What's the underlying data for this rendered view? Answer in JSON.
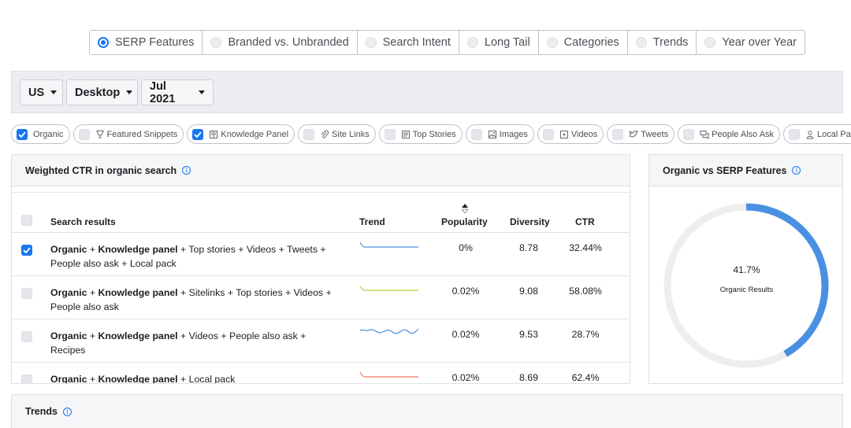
{
  "tabs": [
    {
      "label": "SERP Features",
      "selected": true
    },
    {
      "label": "Branded vs. Unbranded",
      "selected": false
    },
    {
      "label": "Search Intent",
      "selected": false
    },
    {
      "label": "Long Tail",
      "selected": false
    },
    {
      "label": "Categories",
      "selected": false
    },
    {
      "label": "Trends",
      "selected": false
    },
    {
      "label": "Year over Year",
      "selected": false
    }
  ],
  "filters": {
    "country": "US",
    "device": "Desktop",
    "month": "Jul 2021"
  },
  "chips": [
    {
      "label": "Organic",
      "checked": true,
      "icon": "none"
    },
    {
      "label": "Featured Snippets",
      "checked": false,
      "icon": "trophy-icon"
    },
    {
      "label": "Knowledge Panel",
      "checked": true,
      "icon": "book-icon"
    },
    {
      "label": "Site Links",
      "checked": false,
      "icon": "paperclip-icon"
    },
    {
      "label": "Top Stories",
      "checked": false,
      "icon": "newspaper-icon"
    },
    {
      "label": "Images",
      "checked": false,
      "icon": "image-icon"
    },
    {
      "label": "Videos",
      "checked": false,
      "icon": "video-icon"
    },
    {
      "label": "Tweets",
      "checked": false,
      "icon": "twitter-icon"
    },
    {
      "label": "People Also Ask",
      "checked": false,
      "icon": "chat-icon"
    },
    {
      "label": "Local Pack",
      "checked": false,
      "icon": "person-pin-icon"
    }
  ],
  "ctr_panel": {
    "title": "Weighted CTR in organic search",
    "columns": {
      "results": "Search results",
      "trend": "Trend",
      "popularity": "Popularity",
      "diversity": "Diversity",
      "ctr": "CTR"
    },
    "rows": [
      {
        "checked": true,
        "bold1": "Organic",
        "sep": " + ",
        "bold2": "Knowledge panel",
        "rest": " + Top stories + Videos + Tweets + People also ask + Local pack",
        "popularity": "0%",
        "diversity": "8.78",
        "ctr": "32.44%",
        "trend_color": "#4a90d9"
      },
      {
        "checked": false,
        "bold1": "Organic",
        "sep": " + ",
        "bold2": "Knowledge panel",
        "rest": " + Sitelinks + Top stories + Videos + People also ask",
        "popularity": "0.02%",
        "diversity": "9.08",
        "ctr": "58.08%",
        "trend_color": "#b5cc3a"
      },
      {
        "checked": false,
        "bold1": "Organic",
        "sep": " + ",
        "bold2": "Knowledge panel",
        "rest": " + Videos + People also ask + Recipes",
        "popularity": "0.02%",
        "diversity": "9.53",
        "ctr": "28.7%",
        "trend_color": "#4a90d9"
      },
      {
        "checked": false,
        "bold1": "Organic",
        "sep": " + ",
        "bold2": "Knowledge panel",
        "rest": " + Local pack",
        "popularity": "0.02%",
        "diversity": "8.69",
        "ctr": "62.4%",
        "trend_color": "#e8775a"
      }
    ]
  },
  "donut_panel": {
    "title": "Organic vs SERP Features",
    "value_label": "41.7%",
    "value_fraction": 0.417,
    "caption": "Organic Results",
    "color_fill": "#4a90e2",
    "color_track": "#eeeeee"
  },
  "trends_panel": {
    "title": "Trends"
  }
}
